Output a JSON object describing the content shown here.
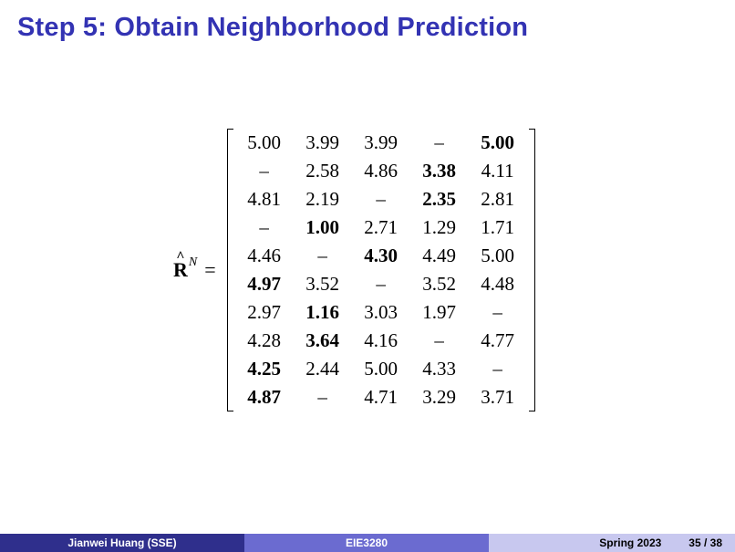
{
  "slide": {
    "title": "Step 5: Obtain Neighborhood Prediction"
  },
  "equation": {
    "symbol": "R",
    "hat": "^",
    "superscript": "N",
    "equals": "=",
    "rows": [
      [
        {
          "v": "5.00",
          "b": false
        },
        {
          "v": "3.99",
          "b": false
        },
        {
          "v": "3.99",
          "b": false
        },
        {
          "v": "–",
          "b": false
        },
        {
          "v": "5.00",
          "b": true
        }
      ],
      [
        {
          "v": "–",
          "b": false
        },
        {
          "v": "2.58",
          "b": false
        },
        {
          "v": "4.86",
          "b": false
        },
        {
          "v": "3.38",
          "b": true
        },
        {
          "v": "4.11",
          "b": false
        }
      ],
      [
        {
          "v": "4.81",
          "b": false
        },
        {
          "v": "2.19",
          "b": false
        },
        {
          "v": "–",
          "b": false
        },
        {
          "v": "2.35",
          "b": true
        },
        {
          "v": "2.81",
          "b": false
        }
      ],
      [
        {
          "v": "–",
          "b": false
        },
        {
          "v": "1.00",
          "b": true
        },
        {
          "v": "2.71",
          "b": false
        },
        {
          "v": "1.29",
          "b": false
        },
        {
          "v": "1.71",
          "b": false
        }
      ],
      [
        {
          "v": "4.46",
          "b": false
        },
        {
          "v": "–",
          "b": false
        },
        {
          "v": "4.30",
          "b": true
        },
        {
          "v": "4.49",
          "b": false
        },
        {
          "v": "5.00",
          "b": false
        }
      ],
      [
        {
          "v": "4.97",
          "b": true
        },
        {
          "v": "3.52",
          "b": false
        },
        {
          "v": "–",
          "b": false
        },
        {
          "v": "3.52",
          "b": false
        },
        {
          "v": "4.48",
          "b": false
        }
      ],
      [
        {
          "v": "2.97",
          "b": false
        },
        {
          "v": "1.16",
          "b": true
        },
        {
          "v": "3.03",
          "b": false
        },
        {
          "v": "1.97",
          "b": false
        },
        {
          "v": "–",
          "b": false
        }
      ],
      [
        {
          "v": "4.28",
          "b": false
        },
        {
          "v": "3.64",
          "b": true
        },
        {
          "v": "4.16",
          "b": false
        },
        {
          "v": "–",
          "b": false
        },
        {
          "v": "4.77",
          "b": false
        }
      ],
      [
        {
          "v": "4.25",
          "b": true
        },
        {
          "v": "2.44",
          "b": false
        },
        {
          "v": "5.00",
          "b": false
        },
        {
          "v": "4.33",
          "b": false
        },
        {
          "v": "–",
          "b": false
        }
      ],
      [
        {
          "v": "4.87",
          "b": true
        },
        {
          "v": "–",
          "b": false
        },
        {
          "v": "4.71",
          "b": false
        },
        {
          "v": "3.29",
          "b": false
        },
        {
          "v": "3.71",
          "b": false
        }
      ]
    ]
  },
  "footer": {
    "author": "Jianwei Huang  (SSE)",
    "course": "EIE3280",
    "date": "Spring 2023",
    "page": "35 / 38"
  },
  "colors": {
    "title": "#3333b3",
    "footer_left": "#2f2f8c",
    "footer_mid": "#6b6bd0",
    "footer_right": "#c8c8ef"
  }
}
